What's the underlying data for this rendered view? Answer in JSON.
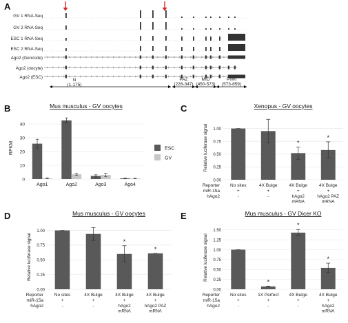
{
  "panel_letters": [
    "A",
    "B",
    "C",
    "D",
    "E"
  ],
  "panel_a": {
    "tracks": [
      "GV 1 RNA-Seq",
      "GV 2 RNA-Seq",
      "ESC 1 RNA-Seq",
      "ESC 2 RNA-Seq",
      "Ago2 (Gencode)",
      "Ago2 (oocyte)",
      "Ago2 (ESC)"
    ],
    "domains": [
      {
        "name": "N",
        "range": "(1-175)"
      },
      {
        "name": "PAZ",
        "range": "(226-347)"
      },
      {
        "name": "MID",
        "range": "(450-573)"
      },
      {
        "name": "PIWI",
        "range": "(573-859)"
      }
    ],
    "arrow_color": "#d62728"
  },
  "chart_data": [
    {
      "panel": "B",
      "type": "bar",
      "title": "Mus musculus - GV oocytes",
      "ylabel": "RPKM",
      "ylim": [
        0,
        45
      ],
      "yticks": [
        0,
        10,
        20,
        30,
        40
      ],
      "categories": [
        "Ago1",
        "Ago2",
        "Ago3",
        "Ago4"
      ],
      "series": [
        {
          "name": "ESC",
          "color": "#595959",
          "values": [
            25.7,
            42.6,
            2.3,
            0.5
          ],
          "errors": [
            3.2,
            1.8,
            0.8,
            0.3
          ]
        },
        {
          "name": "GV",
          "color": "#c8c8c8",
          "values": [
            0.6,
            3.5,
            3.0,
            0.4
          ],
          "errors": [
            0.3,
            0.7,
            1.2,
            0.2
          ]
        }
      ],
      "legend": "right",
      "grid": true
    },
    {
      "panel": "C",
      "type": "bar",
      "title": "Xenopus - GV oocytes",
      "ylabel": "Relative luciferase signal",
      "ylim": [
        0,
        1.25
      ],
      "yticks": [
        "0.00",
        "0.25",
        "0.50",
        "0.75",
        "1.00"
      ],
      "categories": [
        "No sites",
        "4X Bulge",
        "4X Bulge",
        "4X Bulge"
      ],
      "values": [
        1.0,
        0.95,
        0.52,
        0.58
      ],
      "errors": [
        0.0,
        0.23,
        0.12,
        0.16
      ],
      "significance": [
        "",
        "",
        "*",
        "*"
      ],
      "row_labels": [
        "Reporter",
        "miR-15a",
        "hAgo2"
      ],
      "rows": [
        [
          "+",
          "+",
          "+",
          "+"
        ],
        [
          "-",
          "-",
          "hAgo2\nmRNA",
          "hAgo2 PAZ\nmRNA"
        ]
      ],
      "grid": true
    },
    {
      "panel": "D",
      "type": "bar",
      "title": "Mus musculus - GV oocytes",
      "ylabel": "Relative luciferase signal",
      "ylim": [
        0,
        1.1
      ],
      "yticks": [
        "0.00",
        "0.25",
        "0.50",
        "0.75",
        "1.00"
      ],
      "categories": [
        "No sites",
        "4X Bulge",
        "4X Bulge",
        "4X Bulge"
      ],
      "values": [
        1.0,
        0.94,
        0.6,
        0.61
      ],
      "errors": [
        0.0,
        0.11,
        0.14,
        0.0
      ],
      "significance": [
        "",
        "",
        "*",
        "*"
      ],
      "row_labels": [
        "Reporter",
        "miR-15a",
        "hAgo2"
      ],
      "rows": [
        [
          "+",
          "+",
          "+",
          "+"
        ],
        [
          "-",
          "-",
          "hAgo2\nmRNA",
          "hAgo2 PAZ\nmRNA"
        ]
      ],
      "grid": true
    },
    {
      "panel": "E",
      "type": "bar",
      "title": "Mus musculus - GV Dicer KO",
      "ylabel": "Relative luciferase signal",
      "ylim": [
        0,
        1.6
      ],
      "yticks": [
        "0.00",
        "0.25",
        "0.50",
        "0.75",
        "1.00",
        "1.25",
        "1.50"
      ],
      "categories": [
        "No sites",
        "1X Perfect",
        "4X Bulge",
        "4X Bulge"
      ],
      "values": [
        1.0,
        0.07,
        1.43,
        0.54
      ],
      "errors": [
        0.0,
        0.01,
        0.08,
        0.12
      ],
      "significance": [
        "",
        "*",
        "*",
        "*"
      ],
      "row_labels": [
        "Reporter",
        "miR-15a",
        "hAgo2"
      ],
      "rows": [
        [
          "+",
          "+",
          "+",
          "+"
        ],
        [
          "-",
          "-",
          "-",
          "hAgo2\nmRNA"
        ]
      ],
      "grid": true
    }
  ]
}
